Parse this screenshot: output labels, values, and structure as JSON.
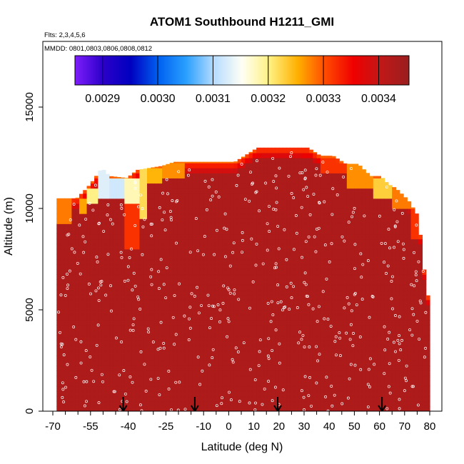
{
  "chart_data": {
    "type": "heatmap",
    "title": "ATOM1 Southbound H1211_GMI",
    "notes": [
      "Flts: 2,3,4,5,6",
      "MMDD: 0801,0803,0806,0808,0812"
    ],
    "xlabel": "Latitude (deg N)",
    "ylabel": "Altitude (m)",
    "xlim": [
      -70,
      85
    ],
    "ylim": [
      0,
      18500
    ],
    "xticks": [
      "-70",
      "-55",
      "-40",
      "-25",
      "-10",
      "0",
      "10",
      "20",
      "30",
      "40",
      "50",
      "60",
      "70",
      "80"
    ],
    "xtick_values": [
      -70,
      -55,
      -40,
      -25,
      -10,
      0,
      10,
      20,
      30,
      40,
      50,
      60,
      70,
      80
    ],
    "xticks_unlabeled": [
      -65,
      -60,
      -50,
      -45,
      -35,
      -30,
      -20,
      -15,
      -5,
      5,
      15,
      25,
      35,
      45,
      55,
      65,
      75
    ],
    "yticks": [
      "0",
      "5000",
      "10000",
      "15000"
    ],
    "ytick_values": [
      0,
      5000,
      10000,
      15000
    ],
    "colorbar": {
      "ticks": [
        "0.0029",
        "0.0030",
        "0.0031",
        "0.0032",
        "0.0033",
        "0.0034"
      ],
      "tick_values": [
        0.0029,
        0.003,
        0.0031,
        0.0032,
        0.0033,
        0.0034
      ],
      "range": [
        0.00285,
        0.003455
      ],
      "colors": [
        "#7e1dfb",
        "#2c00c9",
        "#0000c0",
        "#0060f0",
        "#2aa0ff",
        "#b6dcff",
        "#fffff5",
        "#fff080",
        "#ffb000",
        "#ff4a00",
        "#f00000",
        "#c01818",
        "#9a1e1e"
      ]
    },
    "profile_top": {
      "description": "upper altitude (m) of the colored field by latitude",
      "lat": [
        -68.5,
        -66.5,
        -60.5,
        -56.5,
        -54.5,
        -50.5,
        -47.5,
        -40.5,
        -36.5,
        -31.5,
        -26.5,
        -21.5,
        2.5,
        11.5,
        31.5,
        36.5,
        41.5,
        46.5,
        51.5,
        56.5,
        60.5,
        63.5,
        66.5,
        71.5,
        73.5,
        75.5,
        77.5,
        79.5,
        80.5
      ],
      "alt": [
        10500,
        10500,
        10500,
        11000,
        11300,
        12000,
        11600,
        11500,
        11900,
        12000,
        12100,
        12300,
        12300,
        13000,
        13000,
        12600,
        12600,
        12200,
        12200,
        11600,
        11600,
        11200,
        11000,
        10400,
        10000,
        9600,
        7200,
        5500,
        5500
      ]
    },
    "background_value": 0.00343,
    "low_value_patches": [
      {
        "lat": [
          -52,
          -47
        ],
        "alt": [
          10500,
          12000
        ],
        "value": 0.00313
      },
      {
        "lat": [
          -47,
          -42
        ],
        "alt": [
          10500,
          11600
        ],
        "value": 0.00312
      },
      {
        "lat": [
          -41,
          -36
        ],
        "alt": [
          10200,
          11500
        ],
        "value": 0.00318
      },
      {
        "lat": [
          -36,
          -32
        ],
        "alt": [
          9500,
          11900
        ],
        "value": 0.00322
      },
      {
        "lat": [
          -32,
          -26
        ],
        "alt": [
          11200,
          12000
        ],
        "value": 0.00325
      },
      {
        "lat": [
          -56,
          -52
        ],
        "alt": [
          10200,
          11000
        ],
        "value": 0.0032
      },
      {
        "lat": [
          -60,
          -56
        ],
        "alt": [
          9700,
          10500
        ],
        "value": 0.00326
      },
      {
        "lat": [
          -68,
          -62
        ],
        "alt": [
          9300,
          10500
        ],
        "value": 0.00328
      },
      {
        "lat": [
          -26,
          -18
        ],
        "alt": [
          11500,
          12300
        ],
        "value": 0.00327
      },
      {
        "lat": [
          -42,
          -36
        ],
        "alt": [
          8000,
          10200
        ],
        "value": 0.00332
      },
      {
        "lat": [
          47,
          58
        ],
        "alt": [
          11000,
          12200
        ],
        "value": 0.00327
      },
      {
        "lat": [
          58,
          65
        ],
        "alt": [
          10500,
          11600
        ],
        "value": 0.00323
      },
      {
        "lat": [
          65,
          72
        ],
        "alt": [
          10000,
          11000
        ],
        "value": 0.00328
      },
      {
        "lat": [
          72,
          78
        ],
        "alt": [
          8500,
          10400
        ],
        "value": 0.00332
      },
      {
        "lat": [
          36,
          48
        ],
        "alt": [
          11800,
          12600
        ],
        "value": 0.00332
      },
      {
        "lat": [
          29,
          36
        ],
        "alt": [
          12400,
          13000
        ],
        "value": 0.00336
      },
      {
        "lat": [
          2,
          12
        ],
        "alt": [
          12600,
          13000
        ],
        "value": 0.00336
      }
    ],
    "sample_points_note": "open circles mark individual measurement locations across the field",
    "arrows_lat": [
      -42,
      -13.5,
      19.5,
      61
    ]
  }
}
